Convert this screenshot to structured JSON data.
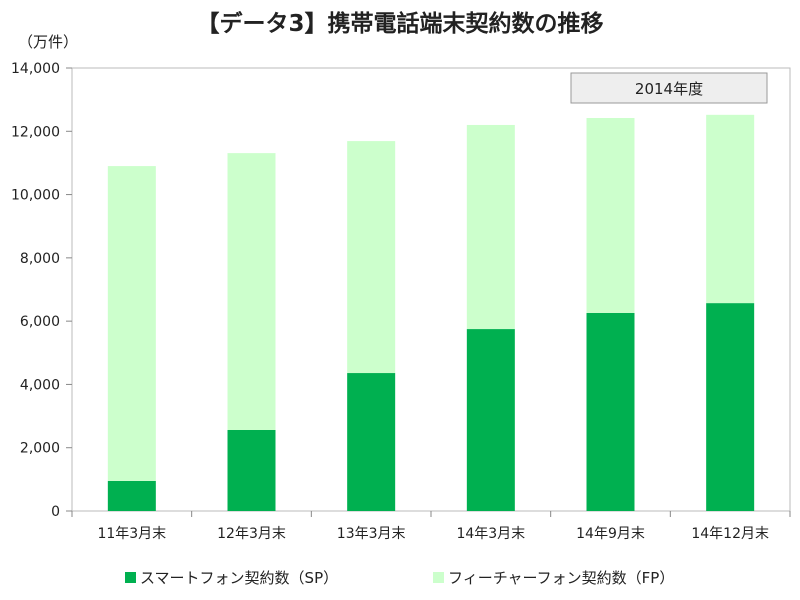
{
  "chart_data": {
    "type": "bar",
    "stacked": true,
    "title": "【データ3】携帯電話端末契約数の推移",
    "ylabel": "（万件）",
    "xlabel": "",
    "ylim": [
      0,
      14000
    ],
    "yticks": [
      0,
      2000,
      4000,
      6000,
      8000,
      10000,
      12000,
      14000
    ],
    "ytick_labels": [
      "0",
      "2,000",
      "4,000",
      "6,000",
      "8,000",
      "10,000",
      "12,000",
      "14,000"
    ],
    "categories": [
      "11年3月末",
      "12年3月末",
      "13年3月末",
      "14年3月末",
      "14年9月末",
      "14年12月末"
    ],
    "series": [
      {
        "name": "スマートフォン契約数（SP）",
        "color": "#00b050",
        "values": [
          950,
          2560,
          4360,
          5750,
          6260,
          6570
        ]
      },
      {
        "name": "フィーチャーフォン契約数（FP）",
        "color": "#ccffcc",
        "values": [
          9950,
          8750,
          7330,
          6450,
          6160,
          5950
        ]
      }
    ],
    "annotation": "2014年度",
    "grid": false,
    "legend_position": "bottom"
  }
}
